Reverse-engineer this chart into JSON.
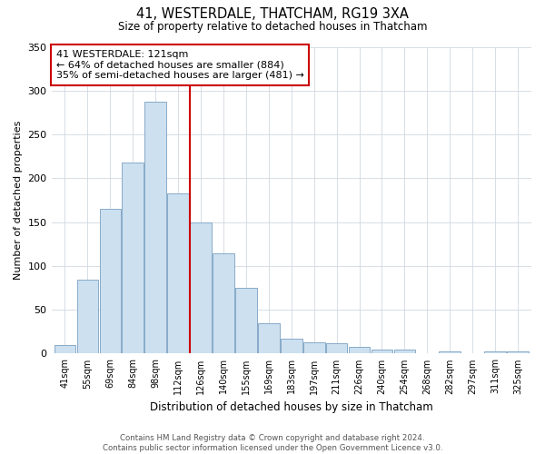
{
  "title": "41, WESTERDALE, THATCHAM, RG19 3XA",
  "subtitle": "Size of property relative to detached houses in Thatcham",
  "xlabel": "Distribution of detached houses by size in Thatcham",
  "ylabel": "Number of detached properties",
  "categories": [
    "41sqm",
    "55sqm",
    "69sqm",
    "84sqm",
    "98sqm",
    "112sqm",
    "126sqm",
    "140sqm",
    "155sqm",
    "169sqm",
    "183sqm",
    "197sqm",
    "211sqm",
    "226sqm",
    "240sqm",
    "254sqm",
    "268sqm",
    "282sqm",
    "297sqm",
    "311sqm",
    "325sqm"
  ],
  "values": [
    10,
    84,
    165,
    218,
    287,
    183,
    150,
    114,
    75,
    35,
    17,
    13,
    12,
    8,
    5,
    5,
    0,
    2,
    0,
    2,
    2
  ],
  "bar_color": "#cce0f0",
  "bar_edge_color": "#88aac8",
  "marker_index": 5.5,
  "annotation_title": "41 WESTERDALE: 121sqm",
  "annotation_line1": "← 64% of detached houses are smaller (884)",
  "annotation_line2": "35% of semi-detached houses are larger (481) →",
  "annotation_box_color": "#ffffff",
  "annotation_box_edge_color": "#cc0000",
  "marker_line_color": "#cc0000",
  "ylim": [
    0,
    350
  ],
  "yticks": [
    0,
    50,
    100,
    150,
    200,
    250,
    300,
    350
  ],
  "footer_line1": "Contains HM Land Registry data © Crown copyright and database right 2024.",
  "footer_line2": "Contains public sector information licensed under the Open Government Licence v3.0.",
  "background_color": "#ffffff",
  "grid_color": "#d0d8e0"
}
